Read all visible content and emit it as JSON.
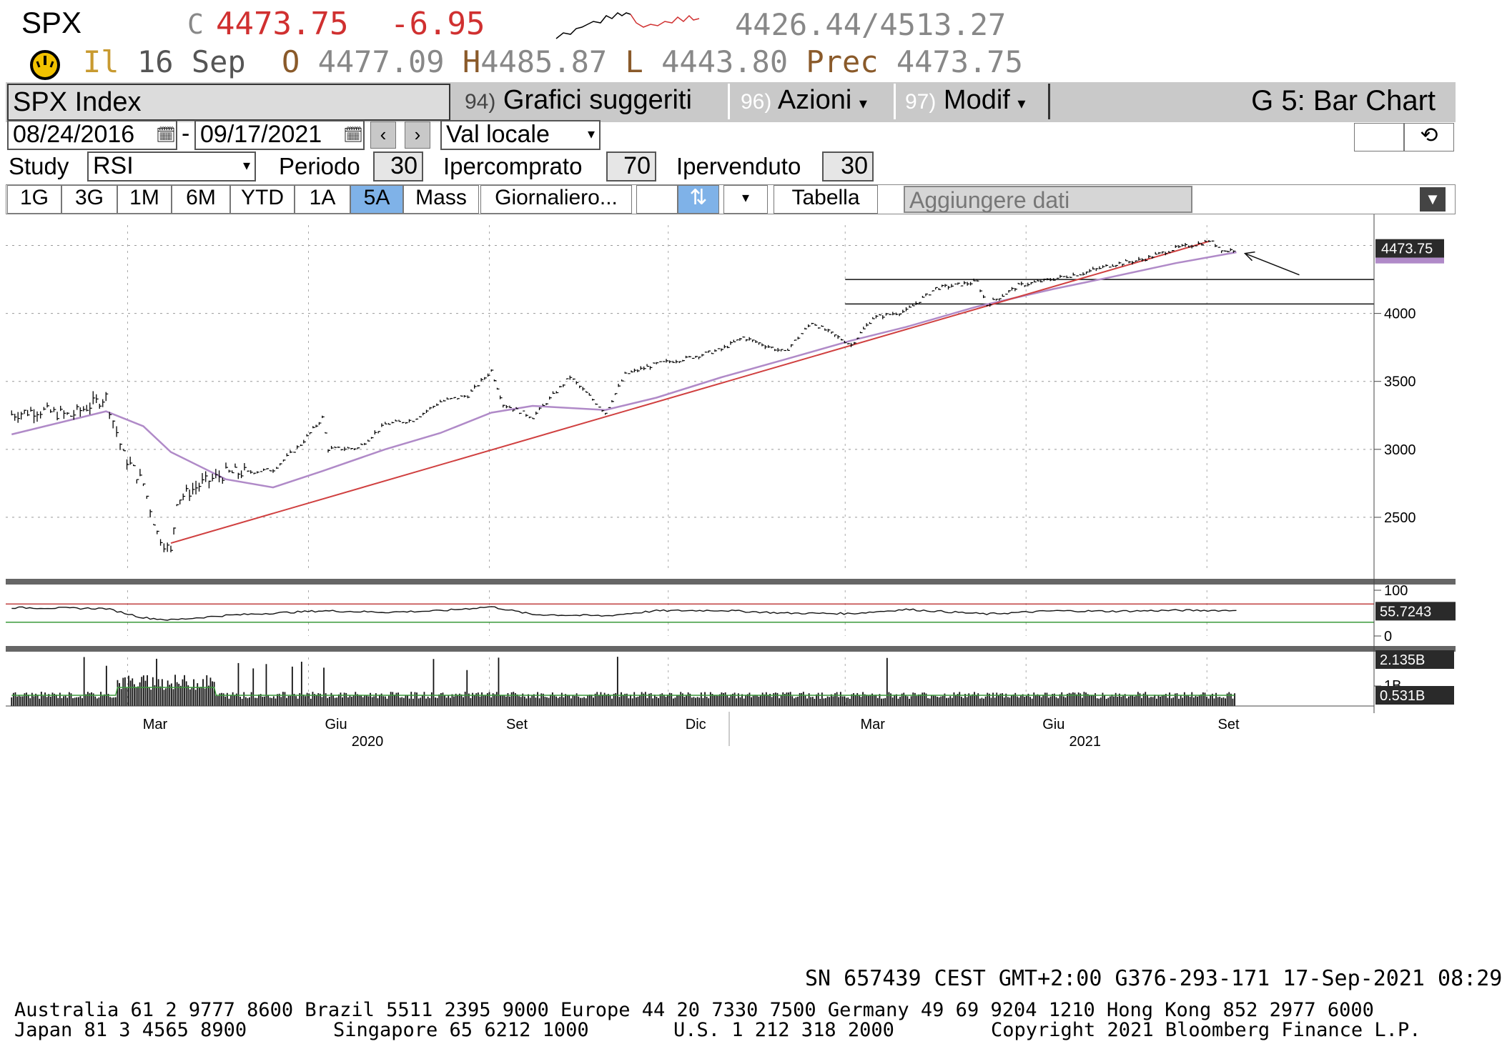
{
  "quote": {
    "ticker": "SPX",
    "last_prefix": "C",
    "last": "4473.75",
    "change": "-6.95",
    "range_low": "4426.44",
    "range_sep": "/",
    "range_high": "4513.27",
    "session_label": "Il",
    "date": "16 Sep",
    "open_label": "O",
    "open": "4477.09",
    "high_label": "H",
    "high": "4485.87",
    "low_label": "L",
    "low": "4443.80",
    "prev_label": "Prec",
    "prev": "4473.75"
  },
  "toolbar": {
    "security": "SPX Index",
    "menu1_num": "94)",
    "menu1_label": "Grafici suggeriti",
    "menu2_num": "96)",
    "menu2_label": "Azioni",
    "menu3_num": "97)",
    "menu3_label": "Modif",
    "function_title": "G 5: Bar Chart"
  },
  "dates": {
    "start": "08/24/2016",
    "sep": "-",
    "end": "09/17/2021",
    "currency": "Val locale"
  },
  "study": {
    "label": "Study",
    "value": "RSI",
    "period_label": "Periodo",
    "period": "30",
    "overbought_label": "Ipercomprato",
    "overbought": "70",
    "oversold_label": "Ipervenduto",
    "oversold": "30"
  },
  "ranges": {
    "buttons": [
      "1G",
      "3G",
      "1M",
      "6M",
      "YTD",
      "1A",
      "5A",
      "Mass"
    ],
    "active": "5A",
    "frequency": "Giornaliero...",
    "table": "Tabella",
    "add_data_placeholder": "Aggiungere dati"
  },
  "chart_data": {
    "type": "line",
    "price": {
      "x": [
        "2020-01-02",
        "2020-01-15",
        "2020-02-01",
        "2020-02-19",
        "2020-02-28",
        "2020-03-09",
        "2020-03-16",
        "2020-03-23",
        "2020-03-26",
        "2020-04-08",
        "2020-04-20",
        "2020-05-01",
        "2020-05-14",
        "2020-05-28",
        "2020-06-08",
        "2020-06-11",
        "2020-06-26",
        "2020-07-10",
        "2020-07-24",
        "2020-08-07",
        "2020-08-21",
        "2020-09-02",
        "2020-09-08",
        "2020-09-23",
        "2020-10-12",
        "2020-10-30",
        "2020-11-09",
        "2020-11-25",
        "2020-12-10",
        "2020-12-28",
        "2021-01-08",
        "2021-01-29",
        "2021-02-12",
        "2021-03-04",
        "2021-03-15",
        "2021-04-01",
        "2021-04-16",
        "2021-05-07",
        "2021-05-12",
        "2021-05-28",
        "2021-06-15",
        "2021-06-30",
        "2021-07-15",
        "2021-07-30",
        "2021-08-16",
        "2021-08-31",
        "2021-09-02",
        "2021-09-10",
        "2021-09-16"
      ],
      "close": [
        3257,
        3289,
        3248,
        3386,
        2954,
        2746,
        2386,
        2237,
        2630,
        2750,
        2823,
        2831,
        2852,
        3036,
        3232,
        3002,
        3009,
        3185,
        3216,
        3351,
        3397,
        3580,
        3331,
        3237,
        3534,
        3270,
        3550,
        3629,
        3668,
        3735,
        3824,
        3714,
        3934,
        3768,
        3968,
        4019,
        4185,
        4232,
        4063,
        4204,
        4255,
        4297,
        4360,
        4395,
        4479,
        4523,
        4537,
        4458,
        4473
      ]
    },
    "moving_average": {
      "x": [
        "2020-01-02",
        "2020-02-19",
        "2020-03-09",
        "2020-03-23",
        "2020-04-20",
        "2020-05-14",
        "2020-06-08",
        "2020-07-10",
        "2020-08-07",
        "2020-09-02",
        "2020-09-23",
        "2020-10-30",
        "2020-11-25",
        "2020-12-28",
        "2021-01-29",
        "2021-03-04",
        "2021-04-01",
        "2021-05-07",
        "2021-06-15",
        "2021-07-15",
        "2021-08-16",
        "2021-09-16"
      ],
      "values": [
        3110,
        3280,
        3170,
        2980,
        2780,
        2720,
        2840,
        3000,
        3120,
        3270,
        3320,
        3290,
        3380,
        3530,
        3660,
        3800,
        3900,
        4050,
        4180,
        4270,
        4370,
        4450
      ]
    },
    "trendline": {
      "x": [
        "2020-03-23",
        "2021-09-02"
      ],
      "y": [
        2310,
        4530
      ]
    },
    "support_levels": [
      4250,
      4070
    ],
    "support_from": "2021-03-01",
    "rsi": {
      "x": [
        "2020-01-02",
        "2020-02-19",
        "2020-03-09",
        "2020-03-23",
        "2020-04-20",
        "2020-05-14",
        "2020-06-08",
        "2020-07-10",
        "2020-08-07",
        "2020-09-02",
        "2020-09-23",
        "2020-10-30",
        "2020-11-25",
        "2020-12-28",
        "2021-01-29",
        "2021-03-04",
        "2021-04-01",
        "2021-05-12",
        "2021-06-15",
        "2021-07-15",
        "2021-08-16",
        "2021-09-16"
      ],
      "values": [
        62,
        60,
        40,
        35,
        45,
        50,
        55,
        52,
        55,
        64,
        47,
        44,
        55,
        56,
        50,
        49,
        58,
        48,
        55,
        54,
        56,
        55.7243
      ],
      "overbought": 70,
      "oversold": 30,
      "ylim": [
        0,
        100
      ],
      "ticks": [
        "100",
        "0"
      ]
    },
    "volume": {
      "ticks": [
        "1B"
      ],
      "last_label": "0.531B",
      "max_label": "2.135B"
    },
    "price_ticks": [
      "4000",
      "3500",
      "3000",
      "2500"
    ],
    "last_price_label": "4473.75",
    "rsi_label": "55.7243",
    "ylim": [
      2100,
      4650
    ],
    "xlim": [
      "2019-12-30",
      "2021-11-25"
    ],
    "x_tick_labels": [
      "Mar",
      "Giu",
      "Set",
      "Dic",
      "Mar",
      "Giu",
      "Set"
    ],
    "x_year_labels": [
      "2020",
      "2021"
    ]
  },
  "footer": {
    "status": "SN 657439 CEST GMT+2:00 G376-293-171 17-Sep-2021 08:29",
    "contacts1": "Australia 61 2 9777 8600 Brazil 5511 2395 9000 Europe 44 20 7330 7500 Germany 49 69 9204 1210 Hong Kong 852 2977 6000",
    "contacts2_a": "Japan 81 3 4565 8900",
    "contacts2_b": "Singapore 65 6212 1000",
    "contacts2_c": "U.S. 1 212 318 2000",
    "copyright": "Copyright 2021 Bloomberg Finance L.P."
  },
  "colors": {
    "price": "#000000",
    "moving_average": "#b08ac8",
    "trendline": "#d04040",
    "rsi_overbought": "#c04040",
    "rsi_oversold": "#3a9a3a",
    "volume_avg": "#3a9a3a",
    "label_box": "#2a2a2a",
    "active_button": "#7fb2e8",
    "last_red": "#d03030",
    "label_brown": "#8a5a2a"
  },
  "icons": {
    "gauge": "gauge-icon",
    "calendar": "calendar-icon",
    "prev": "chevron-left-icon",
    "next": "chevron-right-icon",
    "dropdown": "dropdown-arrow-icon",
    "refresh": "refresh-icon"
  }
}
